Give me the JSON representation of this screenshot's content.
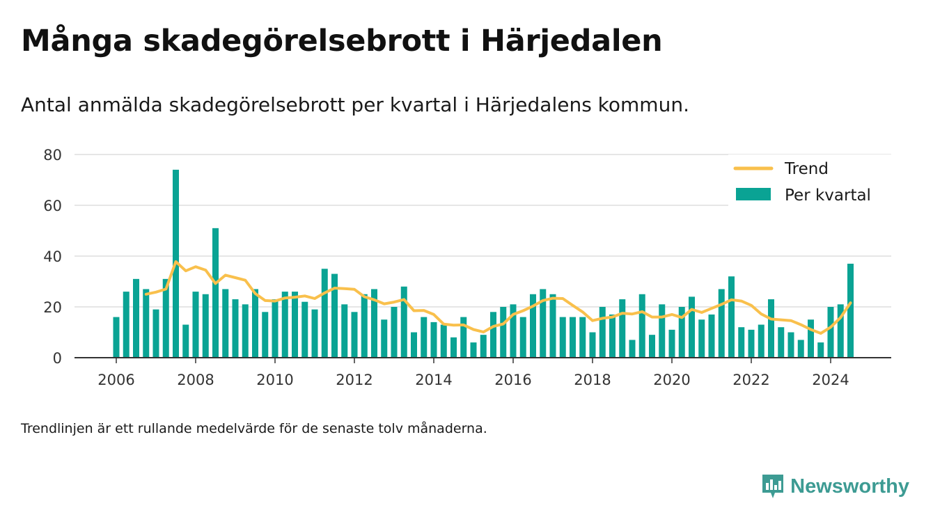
{
  "header": {
    "title": "Många skadegörelsebrott i Härjedalen",
    "subtitle": "Antal anmälda skadegörelsebrott per kvartal i Härjedalens kommun."
  },
  "footnote": "Trendlinjen är ett rullande medelvärde för de senaste tolv månaderna.",
  "brand": {
    "name": "Newsworthy",
    "icon": "bar-chart-speech-bubble-icon",
    "color": "#3d9b93"
  },
  "colors": {
    "bars": "#0aa394",
    "trend": "#f9c04c",
    "grid": "#dddddd",
    "axis": "#333333"
  },
  "chart_data": {
    "type": "bar",
    "x_start": 2006,
    "x_ticks": [
      "2006",
      "2008",
      "2010",
      "2012",
      "2014",
      "2016",
      "2018",
      "2020",
      "2022",
      "2024"
    ],
    "y_ticks": [
      "0",
      "20",
      "40",
      "60",
      "80"
    ],
    "ylim": [
      0,
      80
    ],
    "grid": true,
    "legend_position": "top-right",
    "legend": [
      {
        "label": "Trend",
        "kind": "line"
      },
      {
        "label": "Per kvartal",
        "kind": "bar"
      }
    ],
    "series": [
      {
        "name": "Per kvartal",
        "type": "bar",
        "values": [
          16,
          26,
          31,
          27,
          19,
          31,
          74,
          13,
          26,
          25,
          51,
          27,
          23,
          21,
          27,
          18,
          23,
          26,
          26,
          22,
          19,
          35,
          33,
          21,
          18,
          25,
          27,
          15,
          20,
          28,
          10,
          16,
          14,
          13,
          8,
          16,
          6,
          9,
          18,
          20,
          21,
          16,
          25,
          27,
          25,
          16,
          16,
          16,
          10,
          20,
          17,
          23,
          7,
          25,
          9,
          21,
          11,
          20,
          24,
          15,
          17,
          27,
          32,
          12,
          11,
          13,
          23,
          12,
          10,
          7,
          15,
          6,
          20,
          21,
          37
        ]
      },
      {
        "name": "Trend",
        "type": "line",
        "start_index": 3,
        "values": [
          25,
          25.8,
          27,
          37.8,
          34.2,
          35.8,
          34.5,
          29.2,
          32.5,
          31.5,
          30.5,
          25.3,
          22.5,
          22.3,
          23.5,
          23.8,
          24.3,
          23.3,
          25.5,
          27.4,
          27.2,
          26.9,
          24,
          22.8,
          21.2,
          21.9,
          22.9,
          18.5,
          18.6,
          17,
          13.2,
          12.8,
          12.9,
          11.1,
          10.1,
          12.3,
          13.3,
          17,
          18.5,
          20.3,
          22.5,
          23.4,
          23.3,
          20.6,
          18,
          14.6,
          15.5,
          16,
          17.5,
          17.2,
          18.1,
          16,
          16,
          17,
          15.8,
          19,
          17.8,
          19.4,
          21,
          22.8,
          22.3,
          20.6,
          17.2,
          15.2,
          14.9,
          14.6,
          13,
          11.1,
          9.6,
          12,
          15.8,
          21.6
        ]
      }
    ]
  }
}
